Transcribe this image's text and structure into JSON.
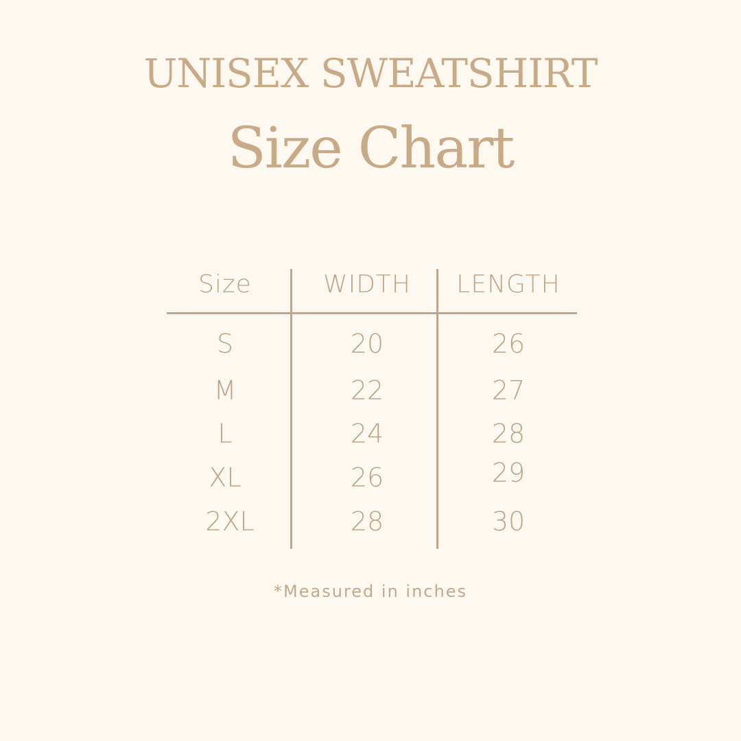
{
  "title": "UNISEX SWEATSHIRT",
  "subtitle": "Size Chart",
  "colors": {
    "background": "#fdf8f0",
    "text": "#c3a789",
    "lines": "#bca690"
  },
  "table": {
    "headers": [
      "Size",
      "WIDTH",
      "LENGTH"
    ],
    "rows": [
      [
        "S",
        "20",
        "26"
      ],
      [
        "M",
        "22",
        "27"
      ],
      [
        "L",
        "24",
        "28"
      ],
      [
        "XL",
        "26",
        "29"
      ],
      [
        "2XL",
        "28",
        "30"
      ]
    ]
  },
  "footnote": "*Measured in inches"
}
